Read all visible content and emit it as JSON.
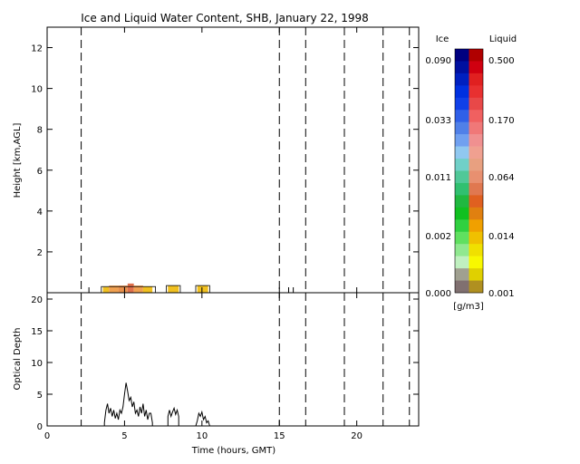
{
  "chart_data": [
    {
      "type": "heatmap",
      "title": "Ice and Liquid Water Content, SHB, January 22, 1998",
      "xlabel": "",
      "ylabel": "Height [km,AGL]",
      "xlim": [
        0,
        24
      ],
      "ylim": [
        0,
        13
      ],
      "xticks": [
        0,
        5,
        10,
        15,
        20
      ],
      "yticks": [
        2,
        4,
        6,
        8,
        10,
        12
      ],
      "dashed_lines_hours": [
        2.2,
        15.0,
        16.7,
        19.2,
        21.7,
        23.4
      ],
      "cloud_cells": [
        {
          "x0": 3.6,
          "x1": 4.0,
          "y0": 0.0,
          "y1": 0.28,
          "color": "#f0c020"
        },
        {
          "x0": 4.0,
          "x1": 4.6,
          "y0": 0.0,
          "y1": 0.35,
          "color": "#f0a050"
        },
        {
          "x0": 4.6,
          "x1": 5.2,
          "y0": 0.0,
          "y1": 0.35,
          "color": "#e8904c"
        },
        {
          "x0": 5.2,
          "x1": 5.6,
          "y0": 0.0,
          "y1": 0.45,
          "color": "#e0704c"
        },
        {
          "x0": 5.6,
          "x1": 6.2,
          "y0": 0.0,
          "y1": 0.35,
          "color": "#f0a050"
        },
        {
          "x0": 6.2,
          "x1": 6.8,
          "y0": 0.0,
          "y1": 0.3,
          "color": "#f0c020"
        },
        {
          "x0": 7.8,
          "x1": 8.5,
          "y0": 0.0,
          "y1": 0.35,
          "color": "#f0c020"
        },
        {
          "x0": 9.7,
          "x1": 10.4,
          "y0": 0.0,
          "y1": 0.35,
          "color": "#f0c020"
        }
      ],
      "outline_marks": [
        {
          "x0": 3.5,
          "x1": 7.0,
          "y0": 0.0,
          "y1": 0.3
        },
        {
          "x0": 7.7,
          "x1": 8.6,
          "y0": 0.0,
          "y1": 0.35
        },
        {
          "x0": 9.6,
          "x1": 10.5,
          "y0": 0.0,
          "y1": 0.35
        }
      ],
      "small_ticks_hours": [
        2.7,
        15.6,
        15.9
      ]
    },
    {
      "type": "line",
      "title": "",
      "xlabel": "Time (hours, GMT)",
      "ylabel": "Optical Depth",
      "xlim": [
        0,
        24
      ],
      "ylim": [
        0,
        21
      ],
      "xticks": [
        0,
        5,
        10,
        15,
        20
      ],
      "yticks": [
        0,
        5,
        10,
        15,
        20
      ],
      "series": [
        {
          "x": [
            3.7,
            3.7,
            3.8,
            3.9,
            4.0,
            4.1,
            4.2,
            4.3,
            4.4,
            4.5,
            4.6,
            4.7,
            4.8,
            4.9,
            5.0,
            5.1,
            5.2,
            5.3,
            5.4,
            5.5,
            5.6,
            5.7,
            5.8,
            5.9,
            6.0,
            6.1,
            6.2,
            6.3,
            6.4,
            6.5,
            6.6,
            6.7,
            6.8,
            6.8
          ],
          "y": [
            0,
            0.5,
            2.5,
            3.5,
            2.0,
            2.8,
            1.5,
            2.5,
            1.2,
            2.0,
            1.0,
            2.5,
            2.0,
            3.0,
            5.0,
            6.8,
            5.5,
            4.0,
            4.5,
            3.0,
            3.8,
            2.0,
            2.5,
            1.5,
            3.0,
            2.0,
            3.5,
            1.5,
            2.5,
            1.0,
            2.0,
            2.0,
            0.5,
            0
          ]
        },
        {
          "x": [
            7.8,
            7.8,
            7.9,
            8.0,
            8.1,
            8.2,
            8.3,
            8.4,
            8.5,
            8.5
          ],
          "y": [
            0,
            1.5,
            2.5,
            1.5,
            2.2,
            2.8,
            1.8,
            2.5,
            1.5,
            0
          ]
        },
        {
          "x": [
            9.6,
            9.7,
            9.8,
            9.9,
            10.0,
            10.1,
            10.2,
            10.3,
            10.4,
            10.5
          ],
          "y": [
            0,
            0.8,
            2.0,
            1.5,
            2.2,
            1.0,
            1.5,
            0.5,
            0.8,
            0
          ]
        }
      ],
      "dashed_lines_hours": [
        2.2,
        15.0,
        16.7,
        19.2,
        21.7,
        23.4
      ]
    }
  ],
  "colorbar": {
    "left_title": "Ice",
    "right_title": "Liquid",
    "units": "[g/m3]",
    "ice_labels": [
      "0.090",
      "0.033",
      "0.011",
      "0.002",
      "0.000"
    ],
    "liquid_labels": [
      "0.500",
      "0.170",
      "0.064",
      "0.014",
      "0.001"
    ],
    "ice_colors": [
      "#000080",
      "#0010a0",
      "#0020c0",
      "#0030e0",
      "#1040e8",
      "#3060e8",
      "#5080e8",
      "#70a0f0",
      "#90c8f0",
      "#70d0c8",
      "#50c898",
      "#30c070",
      "#20b840",
      "#10c020",
      "#30d040",
      "#60e060",
      "#90e890",
      "#c0f0c0",
      "#a0a090",
      "#807070"
    ],
    "liquid_colors": [
      "#b00000",
      "#d00010",
      "#e02020",
      "#e83030",
      "#e84848",
      "#f06060",
      "#f07878",
      "#f09090",
      "#f0a090",
      "#e8a080",
      "#e89070",
      "#e07850",
      "#e06020",
      "#e08010",
      "#f0a000",
      "#f0c000",
      "#f0e000",
      "#f8f800",
      "#e0d000",
      "#b09020"
    ]
  }
}
